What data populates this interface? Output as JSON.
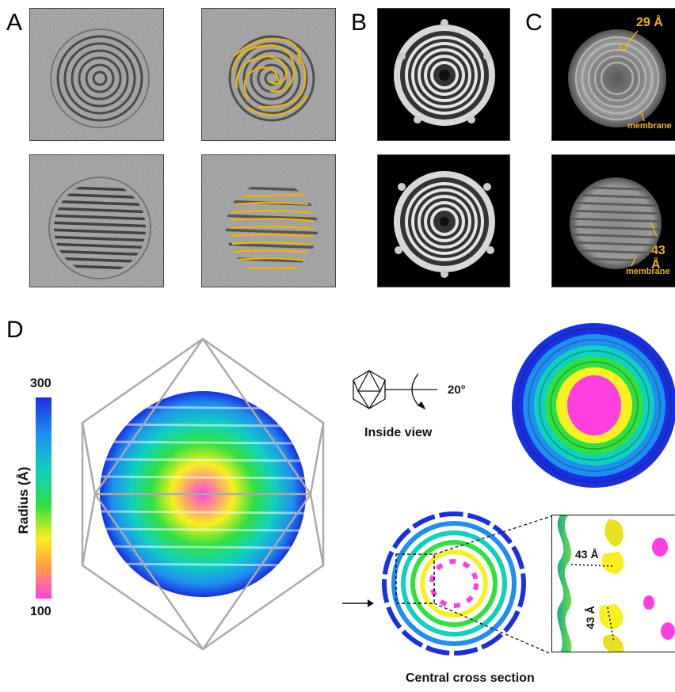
{
  "panel_labels": {
    "a": "A",
    "b": "B",
    "c": "C",
    "d": "D"
  },
  "panel_c": {
    "top_measurement": "29 Å",
    "top_annotation": "membrane",
    "bottom_measurement": "43 Å",
    "bottom_annotation": "membrane"
  },
  "panel_d": {
    "colorbar": {
      "max": "300",
      "min": "100",
      "label": "Radius (Å)",
      "colors": [
        "#1a2fe0",
        "#1e8ef0",
        "#10d0c0",
        "#30e040",
        "#f8f020",
        "#ffa040",
        "#ff40e0"
      ]
    },
    "rotation_angle": "20°",
    "inside_view_label": "Inside view",
    "cross_section_label": "Central cross section",
    "inset_measure_1": "43 Å",
    "inset_measure_2": "43 Å"
  }
}
